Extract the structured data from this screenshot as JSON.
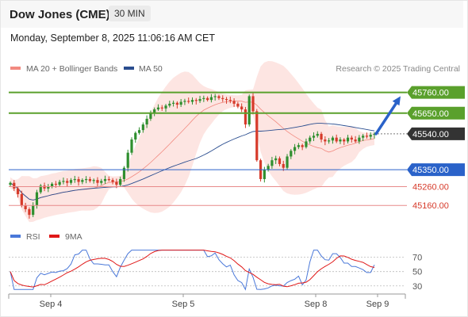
{
  "header": {
    "instrument": "Dow Jones (CME)",
    "timeframe": "30 MIN"
  },
  "timestamp": "Monday, September 8, 2025 11:06:16 AM CET",
  "legend": {
    "bollinger": {
      "label": "MA 20 + Bollinger Bands",
      "color": "#f28a80"
    },
    "ma50": {
      "label": "MA 50",
      "color": "#2a4d8f"
    },
    "source": "Research © 2025 Trading Central"
  },
  "chart_data": [
    {
      "type": "candlestick",
      "title": "",
      "xlabel": "",
      "ylabel": "",
      "x_ticks": [
        "Sep 4",
        "Sep 5",
        "Sep 8",
        "Sep 9"
      ],
      "ylim": [
        45060,
        45830
      ],
      "last_price": 45540,
      "levels": [
        {
          "value": 45760,
          "label": "45760.00",
          "kind": "resistance",
          "color": "#5aa02c"
        },
        {
          "value": 45650,
          "label": "45650.00",
          "kind": "resistance",
          "color": "#5aa02c"
        },
        {
          "value": 45540,
          "label": "45540.00",
          "kind": "last",
          "color": "#333333"
        },
        {
          "value": 45350,
          "label": "45350.00",
          "kind": "pivot",
          "color": "#2a62c9"
        },
        {
          "value": 45260,
          "label": "45260.00",
          "kind": "support",
          "color": "#e88a8a"
        },
        {
          "value": 45160,
          "label": "45160.00",
          "kind": "support",
          "color": "#e88a8a"
        }
      ],
      "arrow": {
        "from": 45540,
        "to": 45740,
        "direction": "up",
        "color": "#2a62c9"
      },
      "closes": [
        45280,
        45250,
        45220,
        45160,
        45140,
        45110,
        45160,
        45230,
        45265,
        45250,
        45262,
        45275,
        45270,
        45285,
        45290,
        45280,
        45295,
        45300,
        45285,
        45295,
        45300,
        45290,
        45295,
        45280,
        45290,
        45300,
        45295,
        45285,
        45270,
        45300,
        45360,
        45440,
        45510,
        45545,
        45560,
        45590,
        45620,
        45650,
        45670,
        45680,
        45675,
        45690,
        45700,
        45705,
        45695,
        45710,
        45715,
        45710,
        45720,
        45715,
        45725,
        45730,
        45720,
        45735,
        45740,
        45730,
        45725,
        45720,
        45715,
        45700,
        45685,
        45670,
        45590,
        45740,
        45660,
        45400,
        45300,
        45350,
        45370,
        45400,
        45410,
        45380,
        45360,
        45420,
        45450,
        45470,
        45480,
        45470,
        45500,
        45520,
        45530,
        45540,
        45510,
        45500,
        45505,
        45520,
        45500,
        45510,
        45500,
        45520,
        45510,
        45500,
        45520,
        45530,
        45525,
        45535,
        45540
      ]
    },
    {
      "type": "line",
      "title": "",
      "series": [
        {
          "name": "RSI",
          "color": "#4a78d9"
        },
        {
          "name": "9MA",
          "color": "#e01818"
        }
      ],
      "yticks": [
        70,
        50,
        30
      ],
      "ylim": [
        22,
        84
      ]
    }
  ]
}
